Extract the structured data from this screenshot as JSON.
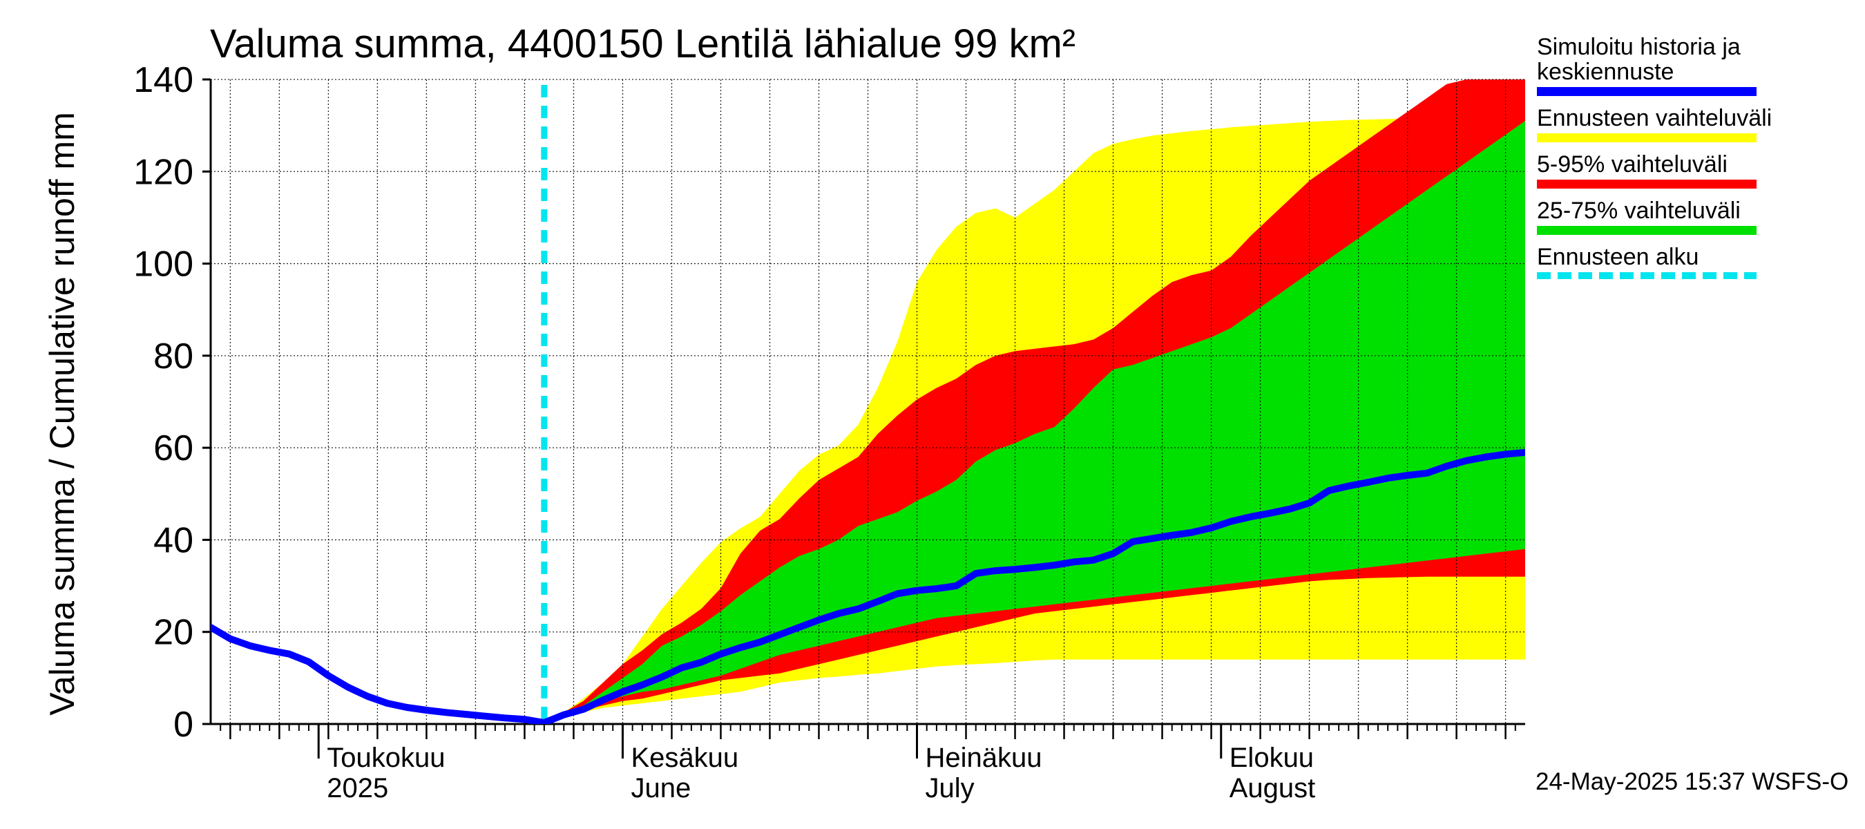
{
  "title": "Valuma summa, 4400150 Lentilä lähialue 99 km²",
  "ylabel": "Valuma summa / Cumulative runoff    mm",
  "footer": "24-May-2025 15:37 WSFS-O",
  "legend": [
    {
      "label": "Simuloitu historia ja\nkeskiennuste",
      "color": "#0000ff",
      "style": "solid"
    },
    {
      "label": "Ennusteen vaihteluväli",
      "color": "#ffff00",
      "style": "solid"
    },
    {
      "label": "5-95% vaihteluväli",
      "color": "#ff0000",
      "style": "solid"
    },
    {
      "label": "25-75% vaihteluväli",
      "color": "#00e000",
      "style": "solid"
    },
    {
      "label": "Ennusteen alku",
      "color": "#00e5ee",
      "style": "dashed"
    }
  ],
  "chart_data": {
    "type": "area",
    "x_unit": "day of year 2025",
    "xlim": [
      110,
      244
    ],
    "ylim": [
      0,
      140
    ],
    "yticks": [
      0,
      20,
      40,
      60,
      80,
      100,
      120,
      140
    ],
    "grid": true,
    "legend_position": "right",
    "month_labels": [
      {
        "day": 121,
        "line1": "Toukokuu",
        "line2": "2025"
      },
      {
        "day": 152,
        "line1": "Kesäkuu",
        "line2": "June"
      },
      {
        "day": 182,
        "line1": "Heinäkuu",
        "line2": "July"
      },
      {
        "day": 213,
        "line1": "Elokuu",
        "line2": "August"
      }
    ],
    "forecast_start_day": 144,
    "colors": {
      "simulated": "#0000ff",
      "range": "#ffff00",
      "p5_95": "#ff0000",
      "p25_75": "#00e000",
      "forecast_start": "#00e5ee"
    },
    "series": [
      {
        "name": "Simuloitu historia ja keskiennuste",
        "x": [
          110,
          112,
          114,
          116,
          118,
          120,
          122,
          124,
          126,
          128,
          130,
          132,
          134,
          136,
          138,
          140,
          142,
          144,
          146,
          148,
          150,
          152,
          154,
          156,
          158,
          160,
          162,
          164,
          166,
          168,
          170,
          172,
          174,
          176,
          178,
          180,
          182,
          184,
          186,
          188,
          190,
          192,
          194,
          196,
          198,
          200,
          202,
          204,
          206,
          208,
          210,
          212,
          214,
          216,
          218,
          220,
          222,
          224,
          226,
          228,
          230,
          232,
          234,
          236,
          238,
          240,
          242,
          244
        ],
        "y": [
          21,
          18.5,
          17,
          16,
          15.2,
          13.5,
          10.5,
          8,
          6,
          4.5,
          3.6,
          3,
          2.5,
          2.1,
          1.7,
          1.3,
          1,
          0.3,
          2,
          3.2,
          5.2,
          7,
          8.5,
          10.2,
          12.2,
          13.4,
          15.2,
          16.6,
          17.8,
          19.4,
          21,
          22.6,
          24,
          25,
          26.6,
          28.3,
          29,
          29.4,
          30,
          32.7,
          33.3,
          33.6,
          34,
          34.5,
          35.2,
          35.6,
          37,
          39.6,
          40.3,
          41,
          41.6,
          42.6,
          44,
          45,
          45.8,
          46.7,
          48,
          50.7,
          51.7,
          52.5,
          53.4,
          54,
          54.5,
          56,
          57.2,
          58,
          58.6,
          59
        ]
      },
      {
        "name": "Ennusteen vaihteluväli",
        "x": [
          144,
          146,
          148,
          150,
          152,
          154,
          156,
          158,
          160,
          162,
          164,
          166,
          168,
          170,
          172,
          174,
          176,
          178,
          180,
          182,
          184,
          186,
          188,
          190,
          192,
          194,
          196,
          198,
          200,
          202,
          204,
          206,
          208,
          210,
          212,
          214,
          216,
          218,
          220,
          222,
          224,
          226,
          228,
          230,
          232,
          234,
          236,
          238,
          240,
          242,
          244
        ],
        "upper": [
          0.3,
          2.5,
          5.5,
          9,
          13,
          19,
          25,
          30,
          35,
          39.5,
          42.5,
          45,
          50,
          55,
          58.5,
          60.5,
          65,
          73,
          83,
          96,
          103,
          108,
          111,
          112,
          110,
          113,
          116,
          120,
          124,
          126,
          127,
          127.8,
          128.3,
          128.8,
          129.2,
          129.6,
          129.9,
          130.2,
          130.5,
          130.8,
          131,
          131.2,
          131.3,
          131.4,
          131.5,
          131.6,
          131.7,
          131.8,
          131.9,
          131.9,
          132
        ],
        "lower": [
          0.3,
          1.5,
          2.5,
          3.5,
          4,
          4.5,
          5,
          5.5,
          6,
          6.5,
          7,
          8,
          9,
          9.5,
          10,
          10.3,
          10.7,
          11,
          11.5,
          12,
          12.5,
          12.8,
          13,
          13.2,
          13.5,
          13.8,
          14,
          14,
          14,
          14,
          14,
          14,
          14,
          14,
          14,
          14,
          14,
          14,
          14,
          14,
          14,
          14,
          14,
          14,
          14,
          14,
          14,
          14,
          14,
          14,
          14
        ]
      },
      {
        "name": "5-95% vaihteluväli",
        "x": [
          144,
          146,
          148,
          150,
          152,
          154,
          156,
          158,
          160,
          162,
          164,
          166,
          168,
          170,
          172,
          174,
          176,
          178,
          180,
          182,
          184,
          186,
          188,
          190,
          192,
          194,
          196,
          198,
          200,
          202,
          204,
          206,
          208,
          210,
          212,
          214,
          216,
          218,
          220,
          222,
          224,
          226,
          228,
          230,
          232,
          234,
          236,
          238,
          240,
          242,
          244
        ],
        "upper": [
          0.3,
          2.5,
          5,
          9,
          13,
          16,
          19.5,
          22,
          25,
          29.5,
          37,
          42,
          44.5,
          49,
          53,
          55.5,
          58,
          63,
          67,
          70.5,
          73,
          75,
          78,
          80,
          81,
          81.5,
          82,
          82.5,
          83.5,
          86,
          89.5,
          93,
          96,
          97.5,
          98.5,
          101.5,
          106,
          110,
          114,
          118,
          121,
          124,
          127,
          130,
          133,
          136,
          139,
          142,
          145,
          148,
          150
        ],
        "lower": [
          0.3,
          1.8,
          3,
          4,
          5,
          5.5,
          6.5,
          7.5,
          8.5,
          9.5,
          10,
          10.5,
          11,
          12,
          13,
          14,
          15,
          16,
          17,
          18,
          19,
          20,
          21,
          22,
          23,
          24,
          24.5,
          25,
          25.5,
          26,
          26.5,
          27,
          27.5,
          28,
          28.5,
          29,
          29.5,
          30,
          30.5,
          31,
          31.3,
          31.5,
          31.7,
          31.8,
          31.9,
          32,
          32,
          32,
          32,
          32,
          32
        ]
      },
      {
        "name": "25-75% vaihteluväli",
        "x": [
          144,
          146,
          148,
          150,
          152,
          154,
          156,
          158,
          160,
          162,
          164,
          166,
          168,
          170,
          172,
          174,
          176,
          178,
          180,
          182,
          184,
          186,
          188,
          190,
          192,
          194,
          196,
          198,
          200,
          202,
          204,
          206,
          208,
          210,
          212,
          214,
          216,
          218,
          220,
          222,
          224,
          226,
          228,
          230,
          232,
          234,
          236,
          238,
          240,
          242,
          244
        ],
        "upper": [
          0.3,
          2.2,
          4,
          7,
          10,
          13,
          17,
          19,
          21.5,
          24.5,
          28,
          31,
          34,
          36.5,
          38,
          40,
          43,
          44.5,
          46,
          48.5,
          50.5,
          53,
          57,
          59.5,
          61,
          63,
          64.5,
          68.5,
          73,
          77,
          78,
          79.5,
          81,
          82.5,
          84,
          86,
          89,
          92,
          95,
          98,
          101,
          104,
          107,
          110,
          113,
          116,
          119,
          122,
          125,
          128,
          131
        ],
        "lower": [
          0.3,
          2,
          3.5,
          5,
          6,
          7,
          7.5,
          8.5,
          9.5,
          10.5,
          12,
          13.5,
          15,
          16,
          17,
          18,
          19,
          20,
          21,
          22,
          23,
          23.5,
          24,
          24.5,
          25,
          25.5,
          26,
          26.5,
          27,
          27.5,
          28,
          28.5,
          29,
          29.5,
          30,
          30.5,
          31,
          31.5,
          32,
          32.5,
          33,
          33.5,
          34,
          34.5,
          35,
          35.5,
          36,
          36.5,
          37,
          37.5,
          38
        ]
      }
    ]
  }
}
